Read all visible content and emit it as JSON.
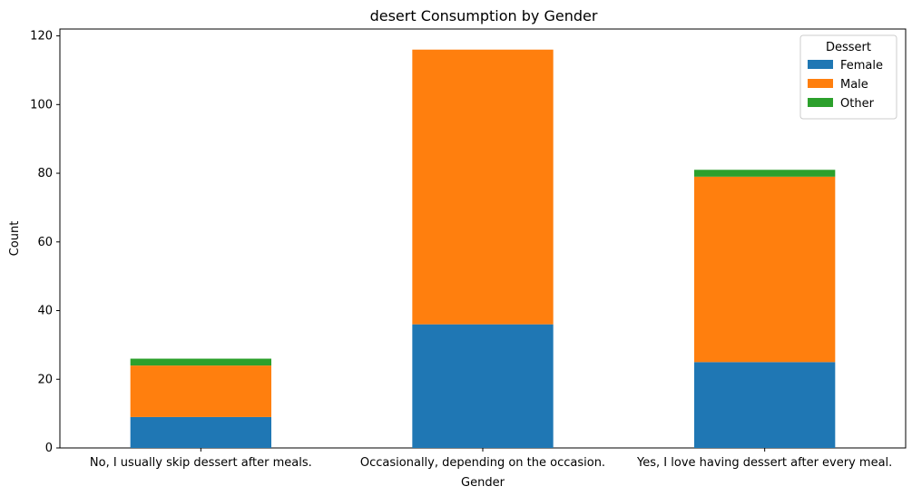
{
  "chart_data": {
    "type": "bar",
    "stacked": true,
    "title": "desert Consumption by Gender",
    "xlabel": "Gender",
    "ylabel": "Count",
    "ylim": [
      0,
      122
    ],
    "yticks": [
      0,
      20,
      40,
      60,
      80,
      100,
      120
    ],
    "grid": false,
    "legend": {
      "title": "Dessert",
      "placement": "top-right"
    },
    "categories": [
      "No, I usually skip dessert after meals.",
      "Occasionally, depending on the occasion.",
      "Yes, I love having dessert after every meal."
    ],
    "series": [
      {
        "name": "Female",
        "color": "#1f77b4",
        "values": [
          9,
          36,
          25
        ]
      },
      {
        "name": "Male",
        "color": "#ff7f0e",
        "values": [
          15,
          80,
          54
        ]
      },
      {
        "name": "Other",
        "color": "#2ca02c",
        "values": [
          2,
          0,
          2
        ]
      }
    ]
  }
}
